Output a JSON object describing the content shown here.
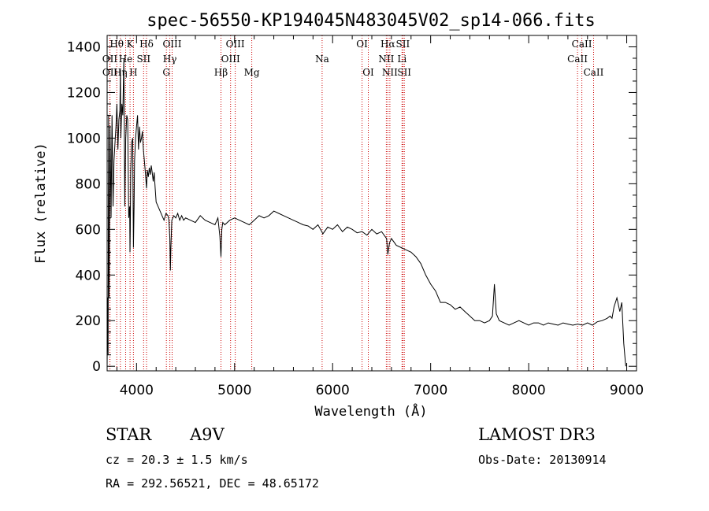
{
  "chart_data": {
    "type": "line",
    "title": "spec-56550-KP194045N483045V02_sp14-066.fits",
    "xlabel": "Wavelength (Å)",
    "ylabel": "Flux (relative)",
    "xlim": [
      3700,
      9100
    ],
    "ylim": [
      -20,
      1450
    ],
    "xticks": [
      4000,
      5000,
      6000,
      7000,
      8000,
      9000
    ],
    "yticks": [
      0,
      200,
      400,
      600,
      800,
      1000,
      1200,
      1400
    ],
    "x_minor_step": 200,
    "y_minor_step": 50,
    "series": [
      {
        "x": [
          3700,
          3705,
          3710,
          3715,
          3720,
          3730,
          3740,
          3750,
          3760,
          3770,
          3780,
          3790,
          3800,
          3810,
          3820,
          3830,
          3835,
          3840,
          3850,
          3860,
          3870,
          3875,
          3880,
          3890,
          3900,
          3910,
          3920,
          3930,
          3933,
          3936,
          3940,
          3950,
          3960,
          3968,
          3975,
          3980,
          3990,
          4000,
          4010,
          4020,
          4030,
          4040,
          4050,
          4060,
          4070,
          4080,
          4090,
          4102,
          4110,
          4120,
          4130,
          4140,
          4150,
          4160,
          4170,
          4180,
          4190,
          4200,
          4220,
          4240,
          4260,
          4280,
          4300,
          4320,
          4330,
          4340,
          4345,
          4350,
          4360,
          4380,
          4400,
          4420,
          4440,
          4460,
          4480,
          4500,
          4550,
          4600,
          4650,
          4700,
          4750,
          4800,
          4830,
          4850,
          4861,
          4870,
          4880,
          4900,
          4950,
          5000,
          5050,
          5100,
          5150,
          5200,
          5250,
          5300,
          5350,
          5400,
          5450,
          5500,
          5550,
          5600,
          5650,
          5700,
          5750,
          5800,
          5850,
          5890,
          5900,
          5950,
          6000,
          6050,
          6100,
          6150,
          6200,
          6250,
          6300,
          6350,
          6400,
          6450,
          6500,
          6550,
          6563,
          6580,
          6600,
          6650,
          6700,
          6750,
          6800,
          6850,
          6900,
          6950,
          7000,
          7050,
          7100,
          7150,
          7200,
          7250,
          7300,
          7350,
          7400,
          7450,
          7500,
          7550,
          7600,
          7630,
          7650,
          7670,
          7700,
          7750,
          7800,
          7850,
          7900,
          7950,
          8000,
          8050,
          8100,
          8150,
          8200,
          8250,
          8300,
          8350,
          8400,
          8450,
          8500,
          8550,
          8600,
          8650,
          8700,
          8750,
          8800,
          8830,
          8850,
          8870,
          8900,
          8930,
          8950,
          8970,
          8990
        ],
        "y": [
          0,
          300,
          50,
          1100,
          300,
          1050,
          650,
          1100,
          700,
          900,
          980,
          1050,
          1150,
          950,
          1080,
          1120,
          1300,
          1000,
          1150,
          1100,
          1350,
          1050,
          700,
          1000,
          1100,
          1080,
          650,
          700,
          500,
          600,
          850,
          980,
          1000,
          520,
          700,
          900,
          1000,
          1050,
          1100,
          950,
          1050,
          980,
          1000,
          1030,
          950,
          900,
          850,
          780,
          860,
          830,
          870,
          840,
          880,
          850,
          810,
          850,
          780,
          720,
          700,
          680,
          660,
          640,
          670,
          660,
          640,
          560,
          420,
          520,
          640,
          660,
          650,
          670,
          640,
          660,
          640,
          650,
          640,
          630,
          660,
          640,
          630,
          620,
          650,
          570,
          480,
          600,
          630,
          620,
          640,
          650,
          640,
          630,
          620,
          640,
          660,
          650,
          660,
          680,
          670,
          660,
          650,
          640,
          630,
          620,
          615,
          600,
          620,
          590,
          580,
          610,
          600,
          620,
          590,
          610,
          600,
          585,
          590,
          575,
          600,
          580,
          590,
          560,
          490,
          540,
          560,
          530,
          520,
          510,
          500,
          480,
          450,
          400,
          360,
          330,
          280,
          280,
          270,
          250,
          260,
          240,
          220,
          200,
          200,
          190,
          200,
          220,
          360,
          230,
          200,
          190,
          180,
          190,
          200,
          190,
          180,
          190,
          190,
          180,
          190,
          185,
          180,
          190,
          185,
          180,
          185,
          180,
          190,
          180,
          195,
          200,
          210,
          220,
          210,
          260,
          300,
          240,
          280,
          100,
          0
        ],
        "color": "#000000"
      }
    ]
  },
  "spectral_lines": [
    {
      "label": "Hθ",
      "wavelength": 3798,
      "row": 0
    },
    {
      "label": "OII",
      "wavelength": 3727,
      "row": 1
    },
    {
      "label": "OII",
      "wavelength": 3729,
      "row": 2
    },
    {
      "label": "Hη",
      "wavelength": 3835,
      "row": 2
    },
    {
      "label": "He",
      "wavelength": 3889,
      "row": 1
    },
    {
      "label": "K",
      "wavelength": 3934,
      "row": 0
    },
    {
      "label": "H",
      "wavelength": 3968,
      "row": 2
    },
    {
      "label": "SII",
      "wavelength": 4072,
      "row": 1
    },
    {
      "label": "Hδ",
      "wavelength": 4102,
      "row": 0
    },
    {
      "label": "OIII",
      "wavelength": 4363,
      "row": 0
    },
    {
      "label": "Hγ",
      "wavelength": 4340,
      "row": 1
    },
    {
      "label": "G",
      "wavelength": 4304,
      "row": 2
    },
    {
      "label": "Hβ",
      "wavelength": 4861,
      "row": 2
    },
    {
      "label": "OIII",
      "wavelength": 5007,
      "row": 0
    },
    {
      "label": "OIII",
      "wavelength": 4959,
      "row": 1
    },
    {
      "label": "Mg",
      "wavelength": 5175,
      "row": 2
    },
    {
      "label": "Na",
      "wavelength": 5893,
      "row": 1
    },
    {
      "label": "OI",
      "wavelength": 6300,
      "row": 0
    },
    {
      "label": "OI",
      "wavelength": 6364,
      "row": 2
    },
    {
      "label": "Hα",
      "wavelength": 6563,
      "row": 0
    },
    {
      "label": "NII",
      "wavelength": 6548,
      "row": 1
    },
    {
      "label": "NII",
      "wavelength": 6584,
      "row": 2
    },
    {
      "label": "SII",
      "wavelength": 6717,
      "row": 0
    },
    {
      "label": "Li",
      "wavelength": 6708,
      "row": 1
    },
    {
      "label": "SII",
      "wavelength": 6731,
      "row": 2
    },
    {
      "label": "CaII",
      "wavelength": 8542,
      "row": 0
    },
    {
      "label": "CaII",
      "wavelength": 8498,
      "row": 1
    },
    {
      "label": "CaII",
      "wavelength": 8662,
      "row": 2
    }
  ],
  "line_marker_color": "#cc0000",
  "info": {
    "class_label": "STAR",
    "subclass": "A9V",
    "survey": "LAMOST DR3",
    "redshift_text": "cz = 20.3 ± 1.5 km/s",
    "obs_date": "Obs-Date: 20130914",
    "coords": "RA = 292.56521, DEC =  48.65172"
  }
}
